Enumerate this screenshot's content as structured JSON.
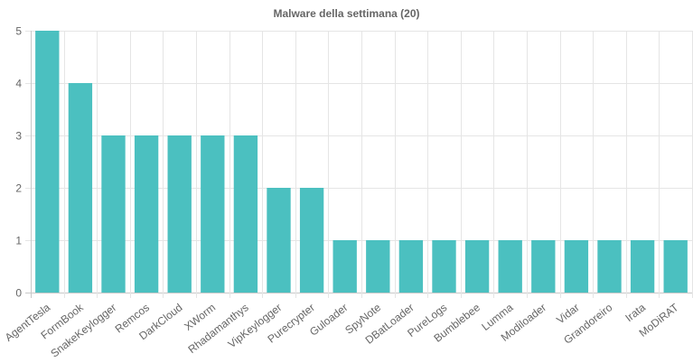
{
  "chart_data": {
    "type": "bar",
    "title": "Malware della settimana (20)",
    "xlabel": "",
    "ylabel": "",
    "ylim": [
      0,
      5
    ],
    "yticks": [
      0,
      1,
      2,
      3,
      4,
      5
    ],
    "grid": true,
    "bar_color": "#4bc0c0",
    "categories": [
      "AgentTesla",
      "FormBook",
      "SnakeKeylogger",
      "Remcos",
      "DarkCloud",
      "XWorm",
      "Rhadamanthys",
      "VipKeylogger",
      "Purecrypter",
      "Guloader",
      "SpyNote",
      "DBatLoader",
      "PureLogs",
      "Bumblebee",
      "Lumma",
      "Modiloader",
      "Vidar",
      "Grandoreiro",
      "Irata",
      "MoDiRAT"
    ],
    "values": [
      5,
      4,
      3,
      3,
      3,
      3,
      3,
      2,
      2,
      1,
      1,
      1,
      1,
      1,
      1,
      1,
      1,
      1,
      1,
      1
    ]
  }
}
